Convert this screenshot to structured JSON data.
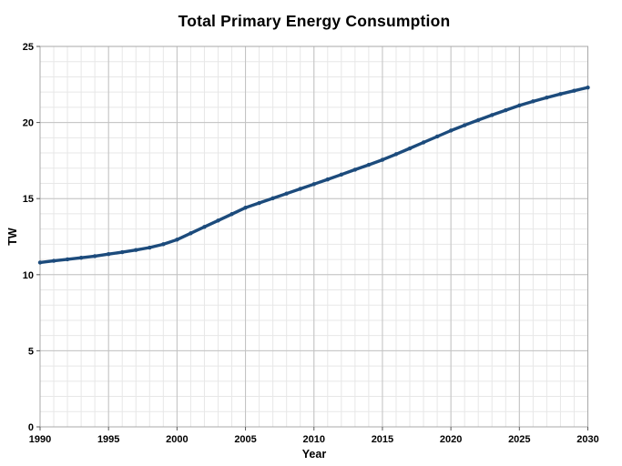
{
  "chart_data": {
    "type": "line",
    "title": "Total Primary Energy Consumption",
    "xlabel": "Year",
    "ylabel": "TW",
    "xlim": [
      1990,
      2030
    ],
    "ylim": [
      0,
      25
    ],
    "x_major_ticks": [
      1990,
      1995,
      2000,
      2005,
      2010,
      2015,
      2020,
      2025,
      2030
    ],
    "x_tick_labels": [
      "1990",
      "1995",
      "2000",
      "2005",
      "2010",
      "2015",
      "2020",
      "2025",
      "2030"
    ],
    "y_major_ticks": [
      0,
      5,
      10,
      15,
      20,
      25
    ],
    "y_tick_labels": [
      "0",
      "5",
      "10",
      "15",
      "20",
      "25"
    ],
    "minor_step_x": 1,
    "minor_step_y": 1,
    "grid": true,
    "legend": "none",
    "series": [
      {
        "color": "#1c4b7c",
        "x": [
          1990,
          1991,
          1992,
          1993,
          1994,
          1995,
          1996,
          1997,
          1998,
          1999,
          2000,
          2001,
          2002,
          2003,
          2004,
          2005,
          2006,
          2007,
          2008,
          2009,
          2010,
          2011,
          2012,
          2013,
          2014,
          2015,
          2016,
          2017,
          2018,
          2019,
          2020,
          2021,
          2022,
          2023,
          2024,
          2025,
          2026,
          2027,
          2028,
          2029,
          2030
        ],
        "y": [
          10.8,
          10.91,
          11.01,
          11.11,
          11.22,
          11.35,
          11.48,
          11.62,
          11.78,
          12.0,
          12.3,
          12.72,
          13.14,
          13.56,
          13.98,
          14.4,
          14.71,
          15.02,
          15.33,
          15.64,
          15.95,
          16.26,
          16.58,
          16.9,
          17.22,
          17.55,
          17.92,
          18.3,
          18.69,
          19.08,
          19.47,
          19.82,
          20.16,
          20.49,
          20.81,
          21.12,
          21.39,
          21.64,
          21.87,
          22.09,
          22.3
        ]
      }
    ],
    "colors": {
      "line": "#1c4b7c",
      "grid_major": "#c2c2c2",
      "grid_minor": "#e7e7e7",
      "plot_border": "#a8a8a8",
      "tick": "#5a5a5a",
      "text": "#000000",
      "background": "#ffffff"
    }
  }
}
